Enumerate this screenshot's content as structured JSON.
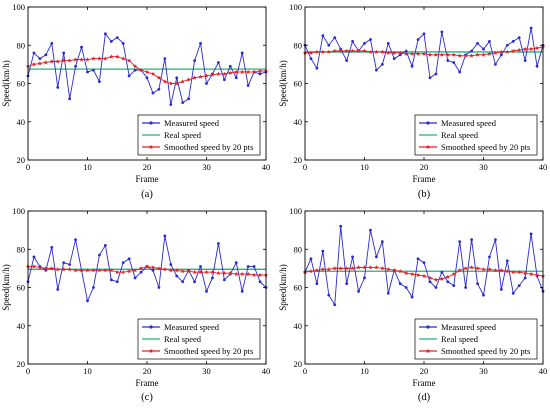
{
  "chart_data": [
    {
      "type": "line",
      "panel_label": "(a)",
      "xlabel": "Frame",
      "ylabel": "Speed(km/h)",
      "xlim": [
        0,
        40
      ],
      "ylim": [
        20,
        100
      ],
      "xticks": [
        "0",
        "10",
        "20",
        "30",
        "40"
      ],
      "yticks": [
        "20",
        "40",
        "60",
        "80",
        "100"
      ],
      "legend_position": "bottom-right",
      "x": [
        0,
        1,
        2,
        3,
        4,
        5,
        6,
        7,
        8,
        9,
        10,
        11,
        12,
        13,
        14,
        15,
        16,
        17,
        18,
        19,
        20,
        21,
        22,
        23,
        24,
        25,
        26,
        27,
        28,
        29,
        30,
        31,
        32,
        33,
        34,
        35,
        36,
        37,
        38,
        39,
        40
      ],
      "series": [
        {
          "name": "Measured speed",
          "color": "#2a2ad0",
          "marker": "dot",
          "values": [
            64,
            76,
            73,
            75,
            81,
            58,
            76,
            52,
            69,
            79,
            66,
            67,
            61,
            86,
            82,
            84,
            81,
            64,
            67,
            67,
            63,
            55,
            57,
            73,
            49,
            63,
            50,
            52,
            72,
            81,
            60,
            65,
            71,
            62,
            69,
            63,
            76,
            59,
            66,
            65,
            66
          ]
        },
        {
          "name": "Real speed",
          "color": "#22b573",
          "marker": "none",
          "values": [
            67.5,
            67.5,
            67.5,
            67.5,
            67.5,
            67.5,
            67.5,
            67.5,
            67.5,
            67.5,
            67.5,
            67.5,
            67.5,
            67.5,
            67.5,
            67.5,
            67.5,
            67.5,
            67.5,
            67.5,
            67.5,
            67.5,
            67.5,
            67.5,
            67.5,
            67.5,
            67.5,
            67.5,
            67.5,
            67.5,
            67.5,
            67.5,
            67.5,
            67.5,
            67.5,
            67.5,
            67.5,
            67.5,
            67.5,
            67.5,
            67.5
          ]
        },
        {
          "name": "Smoothed speed by 20 pts",
          "color": "#e0202a",
          "marker": "star",
          "values": [
            69,
            70,
            70.5,
            71,
            71.5,
            71.5,
            72,
            72,
            72.5,
            72.5,
            72.5,
            73,
            73,
            73,
            74,
            74,
            73,
            72,
            69,
            67,
            66,
            65,
            63,
            61,
            60,
            60,
            61,
            62,
            63,
            63.5,
            64,
            64.5,
            65,
            65,
            65.5,
            66,
            66,
            66,
            66,
            66.5,
            66.5
          ]
        }
      ]
    },
    {
      "type": "line",
      "panel_label": "(b)",
      "xlabel": "Frame",
      "ylabel": "Speed(km/h)",
      "xlim": [
        0,
        40
      ],
      "ylim": [
        20,
        100
      ],
      "xticks": [
        "0",
        "10",
        "20",
        "30",
        "40"
      ],
      "yticks": [
        "20",
        "40",
        "60",
        "80",
        "100"
      ],
      "legend_position": "bottom-right",
      "x": [
        0,
        1,
        2,
        3,
        4,
        5,
        6,
        7,
        8,
        9,
        10,
        11,
        12,
        13,
        14,
        15,
        16,
        17,
        18,
        19,
        20,
        21,
        22,
        23,
        24,
        25,
        26,
        27,
        28,
        29,
        30,
        31,
        32,
        33,
        34,
        35,
        36,
        37,
        38,
        39,
        40
      ],
      "series": [
        {
          "name": "Measured speed",
          "color": "#2a2ad0",
          "marker": "dot",
          "values": [
            80,
            73,
            68,
            85,
            80,
            84,
            78,
            72,
            82,
            77,
            81,
            83,
            67,
            70,
            81,
            73,
            75,
            77,
            69,
            83,
            86,
            63,
            65,
            87,
            72,
            71,
            66,
            75,
            77,
            81,
            78,
            82,
            70,
            75,
            80,
            82,
            84,
            72,
            89,
            69,
            80
          ]
        },
        {
          "name": "Real speed",
          "color": "#22b573",
          "marker": "none",
          "values": [
            76.5,
            76.5,
            76.5,
            76.5,
            76.5,
            76.5,
            76.5,
            76.5,
            76.5,
            76.5,
            76.5,
            76.5,
            76.5,
            76.5,
            76.5,
            76.5,
            76.5,
            76.5,
            76.5,
            76.5,
            76.5,
            76.5,
            76.5,
            76.5,
            76.5,
            76.5,
            76.5,
            76.5,
            76.5,
            76.5,
            76.5,
            76.5,
            76.5,
            76.5,
            76.5,
            76.5,
            76.5,
            76.5,
            76.5,
            76.5,
            76.5
          ]
        },
        {
          "name": "Smoothed speed by 20 pts",
          "color": "#e0202a",
          "marker": "star",
          "values": [
            76,
            76,
            76.5,
            76.5,
            76.5,
            77,
            77,
            77,
            77,
            77,
            77,
            76.5,
            76.5,
            76.5,
            76,
            76,
            76,
            75.5,
            75.5,
            75.5,
            75.5,
            75,
            75,
            75,
            75,
            75,
            74.5,
            74.5,
            74.5,
            75,
            75,
            75.5,
            76,
            76.5,
            76.5,
            77,
            77.5,
            78,
            78,
            78.5,
            79
          ]
        }
      ]
    },
    {
      "type": "line",
      "panel_label": "(c)",
      "xlabel": "Frame",
      "ylabel": "Speed(km/h)",
      "xlim": [
        0,
        40
      ],
      "ylim": [
        20,
        100
      ],
      "xticks": [
        "0",
        "10",
        "20",
        "30",
        "40"
      ],
      "yticks": [
        "20",
        "40",
        "60",
        "80",
        "100"
      ],
      "legend_position": "bottom-right",
      "x": [
        0,
        1,
        2,
        3,
        4,
        5,
        6,
        7,
        8,
        9,
        10,
        11,
        12,
        13,
        14,
        15,
        16,
        17,
        18,
        19,
        20,
        21,
        22,
        23,
        24,
        25,
        26,
        27,
        28,
        29,
        30,
        31,
        32,
        33,
        34,
        35,
        36,
        37,
        38,
        39,
        40
      ],
      "series": [
        {
          "name": "Measured speed",
          "color": "#2a2ad0",
          "marker": "dot",
          "values": [
            63,
            76,
            71,
            69,
            81,
            59,
            73,
            72,
            85,
            69,
            53,
            60,
            77,
            82,
            64,
            63,
            73,
            75,
            65,
            68,
            71,
            69,
            60,
            87,
            72,
            66,
            63,
            69,
            63,
            71,
            58,
            65,
            83,
            64,
            67,
            73,
            58,
            71,
            71,
            63,
            60
          ]
        },
        {
          "name": "Real speed",
          "color": "#22b573",
          "marker": "none",
          "values": [
            69.5,
            69.5,
            69.5,
            69.5,
            69.5,
            69.5,
            69.5,
            69.5,
            69.5,
            69.5,
            69.5,
            69.5,
            69.5,
            69.5,
            69.5,
            69.5,
            69.5,
            69.5,
            69.5,
            69.5,
            69.5,
            69.5,
            69.5,
            69.5,
            69.5,
            69.5,
            69.5,
            69.5,
            69.5,
            69.5,
            69.5,
            69.5,
            69.5,
            69.5,
            69.5,
            69.5,
            69.5,
            69.5,
            69.5,
            69.5,
            69.5
          ]
        },
        {
          "name": "Smoothed speed by 20 pts",
          "color": "#e0202a",
          "marker": "star",
          "values": [
            71,
            71,
            70.5,
            70,
            70,
            69.5,
            69.5,
            69.5,
            69,
            69,
            69,
            69,
            69,
            69,
            69,
            68,
            68,
            68.5,
            69,
            70,
            71,
            70.5,
            70,
            69.5,
            69,
            69,
            68.5,
            68.5,
            68,
            68,
            68,
            68,
            67.5,
            67.5,
            67.5,
            67,
            67,
            67,
            66.5,
            66.5,
            66.5
          ]
        }
      ]
    },
    {
      "type": "line",
      "panel_label": "(d)",
      "xlabel": "Frame",
      "ylabel": "Speed(km/h)",
      "xlim": [
        0,
        40
      ],
      "ylim": [
        20,
        100
      ],
      "xticks": [
        "0",
        "10",
        "20",
        "30",
        "40"
      ],
      "yticks": [
        "20",
        "40",
        "60",
        "80",
        "100"
      ],
      "legend_position": "bottom-right",
      "x": [
        0,
        1,
        2,
        3,
        4,
        5,
        6,
        7,
        8,
        9,
        10,
        11,
        12,
        13,
        14,
        15,
        16,
        17,
        18,
        19,
        20,
        21,
        22,
        23,
        24,
        25,
        26,
        27,
        28,
        29,
        30,
        31,
        32,
        33,
        34,
        35,
        36,
        37,
        38,
        39,
        40
      ],
      "series": [
        {
          "name": "Measured speed",
          "color": "#2a2ad0",
          "marker": "dot",
          "values": [
            68,
            75,
            62,
            79,
            56,
            51,
            92,
            62,
            76,
            58,
            65,
            90,
            76,
            84,
            57,
            69,
            62,
            60,
            55,
            75,
            73,
            63,
            60,
            68,
            63,
            61,
            84,
            60,
            85,
            62,
            56,
            76,
            85,
            59,
            74,
            57,
            61,
            65,
            88,
            66,
            58
          ]
        },
        {
          "name": "Real speed",
          "color": "#22b573",
          "marker": "none",
          "values": [
            68.5,
            68.5,
            68.5,
            68.5,
            68.5,
            68.5,
            68.5,
            68.5,
            68.5,
            68.5,
            68.5,
            68.5,
            68.5,
            68.5,
            68.5,
            68.5,
            68.5,
            68.5,
            68.5,
            68.5,
            68.5,
            68.5,
            68.5,
            68.5,
            68.5,
            68.5,
            68.5,
            68.5,
            68.5,
            68.5,
            68.5,
            68.5,
            68.5,
            68.5,
            68.5,
            68.5,
            68.5,
            68.5,
            68.5,
            68.5,
            68.5
          ]
        },
        {
          "name": "Smoothed speed by 20 pts",
          "color": "#e0202a",
          "marker": "star",
          "values": [
            68,
            68.5,
            69,
            69.5,
            69.5,
            70,
            70,
            70,
            70,
            70.5,
            70.5,
            70.5,
            70.5,
            70,
            69.5,
            69,
            68.5,
            67.5,
            67,
            66.5,
            66,
            65,
            64,
            64.5,
            65.5,
            67,
            69,
            70,
            70.5,
            70,
            69.5,
            69.5,
            69,
            69,
            68.5,
            68,
            68,
            67.5,
            67,
            66.5,
            66
          ]
        }
      ]
    }
  ]
}
